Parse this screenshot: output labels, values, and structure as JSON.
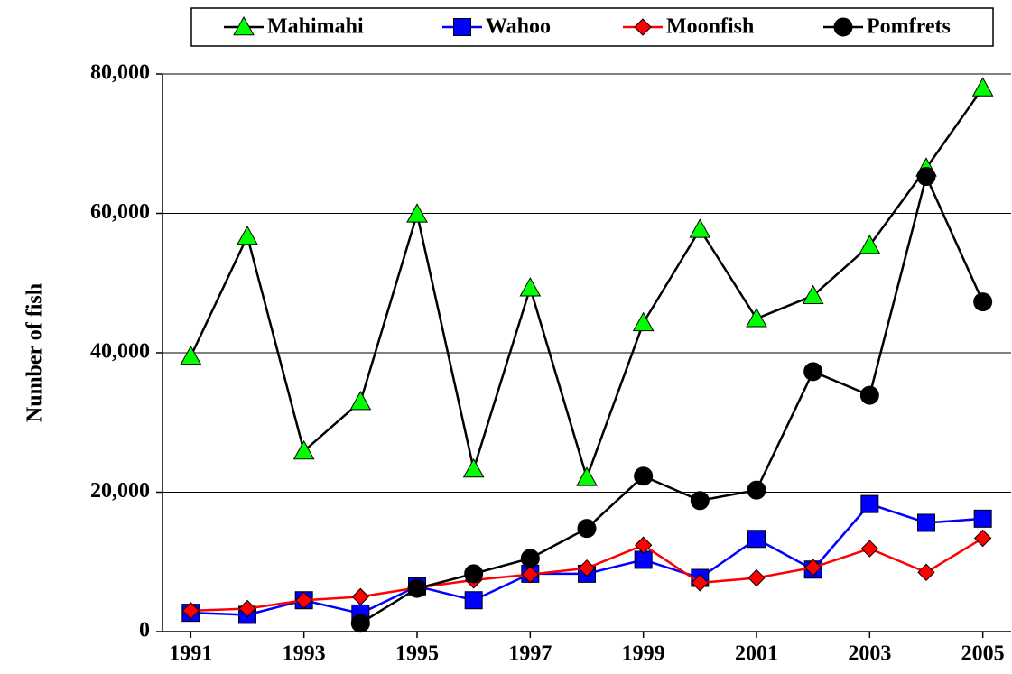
{
  "chart_data": {
    "type": "line",
    "y_label": "Number of fish",
    "x": [
      1991,
      1992,
      1993,
      1994,
      1995,
      1996,
      1997,
      1998,
      1999,
      2000,
      2001,
      2002,
      2003,
      2004,
      2005
    ],
    "xlim": [
      1990.5,
      2005.5
    ],
    "xticks": [
      1991,
      1993,
      1995,
      1997,
      1999,
      2001,
      2003,
      2005
    ],
    "ylim": [
      0,
      80000
    ],
    "yticks": [
      0,
      {
        "value": 20000,
        "label": "20,000"
      },
      {
        "value": 40000,
        "label": "40,000"
      },
      {
        "value": 60000,
        "label": "60,000"
      },
      {
        "value": 80000,
        "label": "80,000"
      }
    ],
    "grid": true,
    "legend": "top",
    "series": [
      {
        "name": "Mahimahi",
        "color": "#00ff00",
        "line_color": "#000000",
        "marker": "triangle",
        "values": [
          39500,
          56700,
          25900,
          33000,
          59900,
          23300,
          49300,
          22100,
          44300,
          57700,
          44900,
          48200,
          55400,
          66500,
          78000
        ]
      },
      {
        "name": "Wahoo",
        "color": "#0000ff",
        "line_color": "#0000ff",
        "marker": "square",
        "values": [
          2700,
          2400,
          4500,
          2600,
          6500,
          4500,
          8300,
          8300,
          10300,
          7700,
          13300,
          8900,
          18300,
          15600,
          16200
        ]
      },
      {
        "name": "Moonfish",
        "color": "#ff0000",
        "line_color": "#ff0000",
        "marker": "diamond",
        "values": [
          3000,
          3300,
          4500,
          5000,
          6300,
          7400,
          8200,
          9100,
          12400,
          7000,
          7700,
          9200,
          11900,
          8500,
          13400
        ]
      },
      {
        "name": "Pomfrets",
        "color": "#000000",
        "line_color": "#000000",
        "marker": "circle",
        "values": [
          null,
          null,
          null,
          1200,
          6200,
          8300,
          10500,
          14800,
          22300,
          18800,
          20300,
          37300,
          33900,
          65300,
          47300
        ]
      }
    ]
  }
}
